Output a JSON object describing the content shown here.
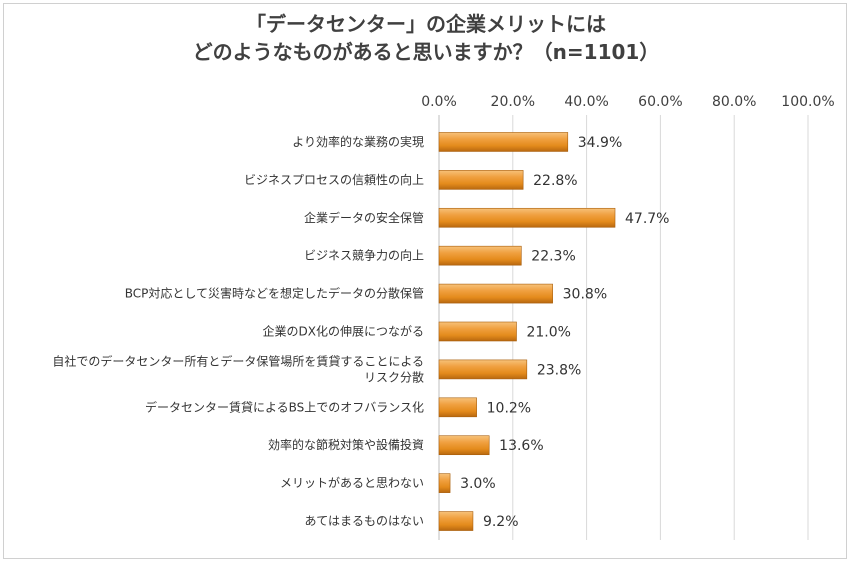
{
  "chart_data": {
    "type": "bar",
    "orientation": "horizontal",
    "title_lines": [
      "「データセンター」の企業メリットには",
      "どのようなものがあると思いますか？（n=1101）"
    ],
    "x_ticks": [
      "0.0%",
      "20.0%",
      "40.0%",
      "60.0%",
      "80.0%",
      "100.0%"
    ],
    "xlim": [
      0,
      100
    ],
    "grid": true,
    "bar_color": "#e48b1c",
    "categories": [
      [
        "より効率的な業務の実現"
      ],
      [
        "ビジネスプロセスの信頼性の向上"
      ],
      [
        "企業データの安全保管"
      ],
      [
        "ビジネス競争力の向上"
      ],
      [
        "BCP対応として災害時などを想定したデータの分散保管"
      ],
      [
        "企業のDX化の伸展につながる"
      ],
      [
        "自社でのデータセンター所有とデータ保管場所を賃貸することによる",
        "リスク分散"
      ],
      [
        "データセンター賃貸によるBS上でのオフバランス化"
      ],
      [
        "効率的な節税対策や設備投資"
      ],
      [
        "メリットがあると思わない"
      ],
      [
        "あてはまるものはない"
      ]
    ],
    "values": [
      34.9,
      22.8,
      47.7,
      22.3,
      30.8,
      21.0,
      23.8,
      10.2,
      13.6,
      3.0,
      9.2
    ],
    "value_labels": [
      "34.9%",
      "22.8%",
      "47.7%",
      "22.3%",
      "30.8%",
      "21.0%",
      "23.8%",
      "10.2%",
      "13.6%",
      "3.0%",
      "9.2%"
    ]
  }
}
